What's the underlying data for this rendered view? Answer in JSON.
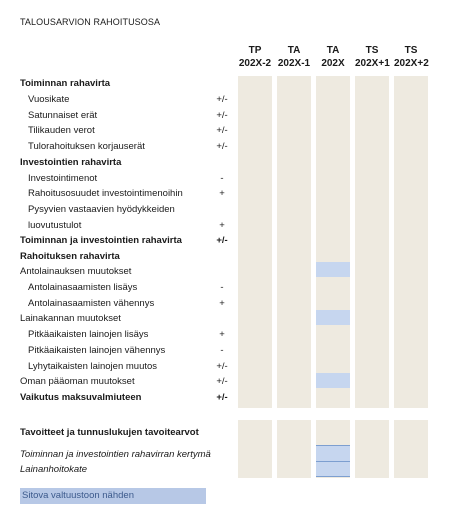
{
  "title": "TALOUSARVION RAHOITUSOSA",
  "columns": [
    {
      "top": "TP",
      "bottom": "202X-2"
    },
    {
      "top": "TA",
      "bottom": "202X-1"
    },
    {
      "top": "TA",
      "bottom": "202X"
    },
    {
      "top": "TS",
      "bottom": "202X+1"
    },
    {
      "top": "TS",
      "bottom": "202X+2"
    }
  ],
  "rows": [
    {
      "label": "Toiminnan rahavirta",
      "sign": "",
      "style": "bold"
    },
    {
      "label": "Vuosikate",
      "sign": "+/-",
      "style": "indent"
    },
    {
      "label": "Satunnaiset erät",
      "sign": "+/-",
      "style": "indent"
    },
    {
      "label": "Tilikauden verot",
      "sign": "+/-",
      "style": "indent"
    },
    {
      "label": "Tulorahoituksen korjauserät",
      "sign": "+/-",
      "style": "indent"
    },
    {
      "label": "Investointien rahavirta",
      "sign": "",
      "style": "bold"
    },
    {
      "label": "Investointimenot",
      "sign": "-",
      "style": "indent"
    },
    {
      "label": "Rahoitusosuudet investointimenoihin",
      "sign": "+",
      "style": "indent"
    },
    {
      "label": "Pysyvien vastaavien hyödykkeiden",
      "sign": "",
      "style": "indent"
    },
    {
      "label": "luovutustulot",
      "sign": "+",
      "style": "indent"
    },
    {
      "label": "Toiminnan ja investointien rahavirta",
      "sign": "+/-",
      "style": "bold"
    },
    {
      "label": "Rahoituksen rahavirta",
      "sign": "",
      "style": "bold"
    },
    {
      "label": "Antolainauksen muutokset",
      "sign": "",
      "style": "normal"
    },
    {
      "label": "Antolainasaamisten lisäys",
      "sign": "-",
      "style": "indent"
    },
    {
      "label": "Antolainasaamisten vähennys",
      "sign": "+",
      "style": "indent"
    },
    {
      "label": "Lainakannan muutokset",
      "sign": "",
      "style": "normal"
    },
    {
      "label": "Pitkäaikaisten lainojen lisäys",
      "sign": "+",
      "style": "indent"
    },
    {
      "label": "Pitkäaikaisten lainojen vähennys",
      "sign": "-",
      "style": "indent"
    },
    {
      "label": "Lyhytaikaisten lainojen muutos",
      "sign": "+/-",
      "style": "indent"
    },
    {
      "label": "Oman pääoman muutokset",
      "sign": "+/-",
      "style": "normal"
    },
    {
      "label": "Vaikutus maksuvalmiuteen",
      "sign": "+/-",
      "style": "bold"
    }
  ],
  "targets": {
    "heading": "Tavoitteet ja tunnuslukujen tavoitearvot",
    "items": [
      "Toiminnan ja investointien rahavirran kertymä",
      "Lainanhoitokate"
    ]
  },
  "footer": "Sitova valtuustoon nähden",
  "colors": {
    "cell": "#eeeae0",
    "highlight": "#c6d6ef",
    "footer": "#b7c8e6"
  }
}
